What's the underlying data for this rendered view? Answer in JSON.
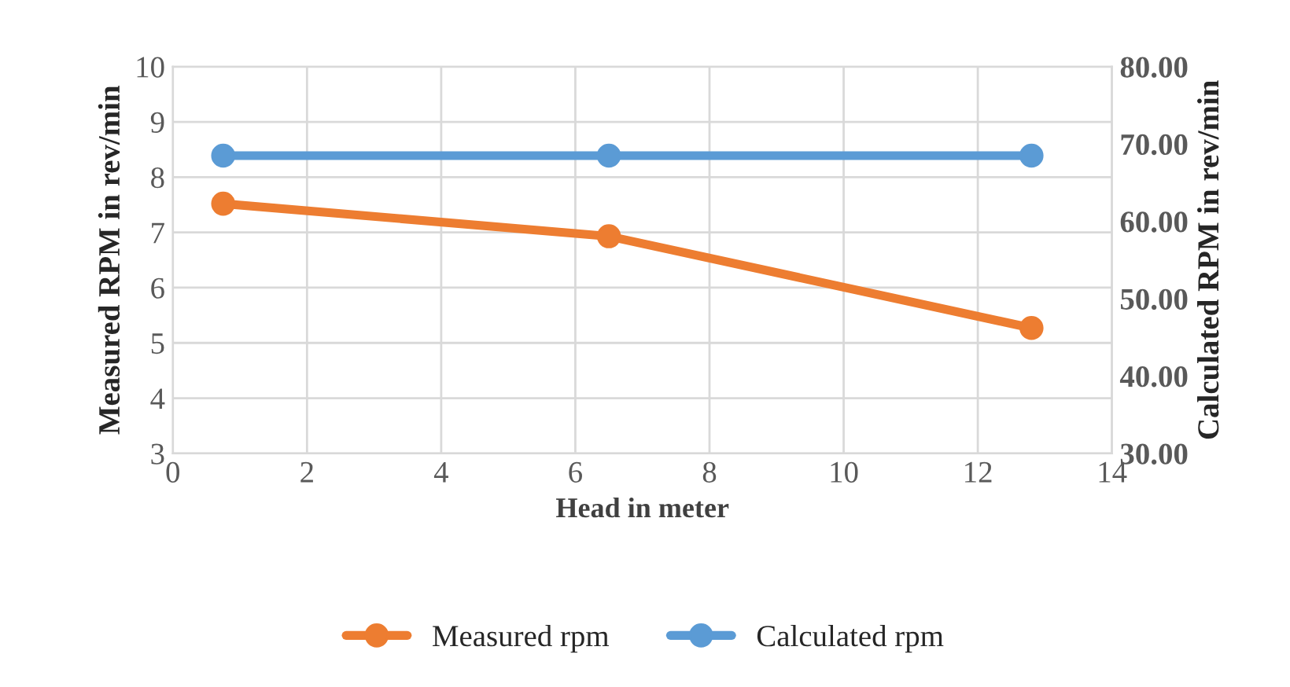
{
  "chart_data": {
    "type": "line",
    "xlabel": "Head in meter",
    "ylabel": "Measured RPM in rev/min",
    "y2label": "Calculated RPM in rev/min",
    "x": [
      0.75,
      6.5,
      12.8
    ],
    "series": [
      {
        "name": "Measured rpm",
        "color": "#ed7d31",
        "values": [
          7.52,
          6.93,
          5.27
        ]
      },
      {
        "name": "Calculated rpm",
        "color": "#5b9bd5",
        "values": [
          68.5,
          68.5,
          68.5
        ],
        "axis": "y2"
      }
    ],
    "xlim": [
      0,
      14
    ],
    "xticks": [
      0,
      2,
      4,
      6,
      8,
      10,
      12,
      14
    ],
    "ylim": [
      3,
      10
    ],
    "yticks": [
      3,
      4,
      5,
      6,
      7,
      8,
      9,
      10
    ],
    "y2lim": [
      30,
      80
    ],
    "y2ticks": [
      {
        "value": 30,
        "label": "30.00"
      },
      {
        "value": 40,
        "label": "40.00"
      },
      {
        "value": 50,
        "label": "50.00"
      },
      {
        "value": 60,
        "label": "60.00"
      },
      {
        "value": 70,
        "label": "70.00"
      },
      {
        "value": 80,
        "label": "80.00"
      }
    ],
    "grid": true,
    "legend": "bottom",
    "marker": "circle",
    "line_style": "solid"
  }
}
